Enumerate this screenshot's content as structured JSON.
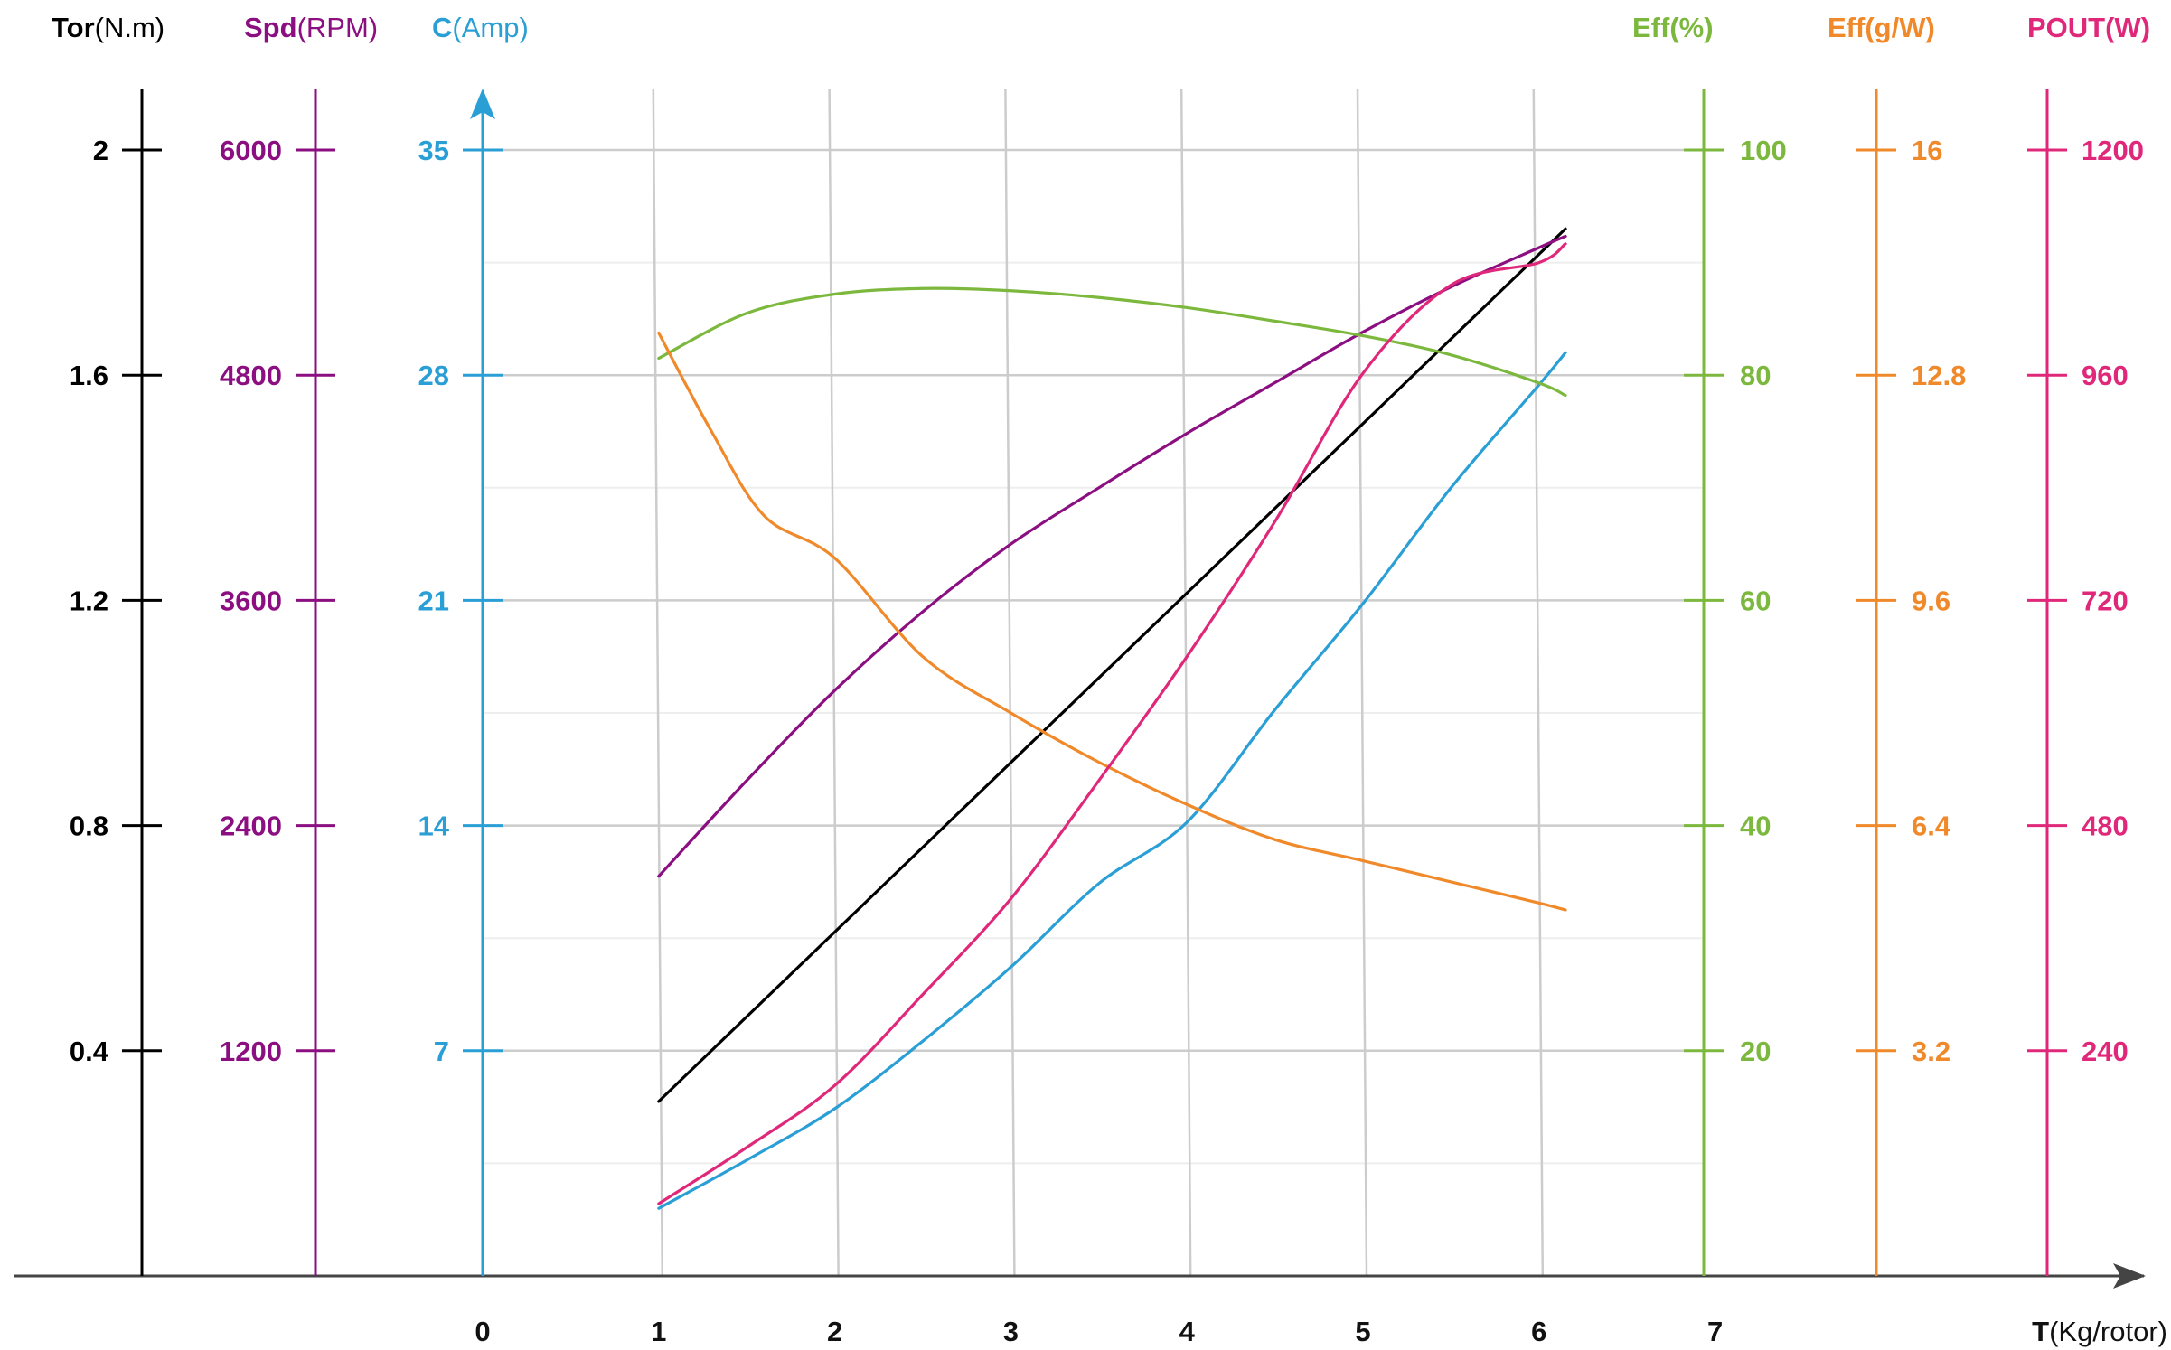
{
  "chart_data": {
    "type": "line",
    "x_axis": {
      "title_bold": "T",
      "title_rest": "(Kg/rotor)",
      "ticks": [
        0,
        1,
        2,
        3,
        4,
        5,
        6,
        7
      ],
      "range": [
        0,
        7
      ]
    },
    "y_axes": [
      {
        "id": "tor",
        "title_bold": "Tor",
        "title_rest": "(N.m)",
        "color": "#000000",
        "ticks": [
          "0.4",
          "0.8",
          "1.2",
          "1.6",
          "2"
        ],
        "range": [
          0,
          2
        ]
      },
      {
        "id": "spd",
        "title_bold": "Spd",
        "title_rest": "(RPM)",
        "color": "#8b0f80",
        "ticks": [
          "1200",
          "2400",
          "3600",
          "4800",
          "6000"
        ],
        "range": [
          0,
          6000
        ]
      },
      {
        "id": "c",
        "title_bold": "C",
        "title_rest": "(Amp)",
        "color": "#2a9fd6",
        "ticks": [
          "7",
          "14",
          "21",
          "28",
          "35"
        ],
        "range": [
          0,
          35
        ]
      },
      {
        "id": "eff",
        "title_bold": "Eff(%)",
        "title_rest": "",
        "color": "#7cb83d",
        "ticks": [
          "20",
          "40",
          "60",
          "80",
          "100"
        ],
        "range": [
          0,
          100
        ]
      },
      {
        "id": "effg",
        "title_bold": "Eff(g/W)",
        "title_rest": "",
        "color": "#f0892a",
        "ticks": [
          "3.2",
          "6.4",
          "9.6",
          "12.8",
          "16"
        ],
        "range": [
          0,
          16
        ]
      },
      {
        "id": "pout",
        "title_bold": "POUT(W)",
        "title_rest": "",
        "color": "#e0287a",
        "ticks": [
          "240",
          "480",
          "720",
          "960",
          "1200"
        ],
        "range": [
          0,
          1200
        ]
      }
    ],
    "grid": true,
    "series": [
      {
        "axis": "tor",
        "color": "#000000",
        "x": [
          1,
          6.15
        ],
        "y": [
          0.31,
          1.86
        ]
      },
      {
        "axis": "spd",
        "color": "#8b0f80",
        "x": [
          1,
          1.5,
          2,
          2.5,
          3,
          3.5,
          4,
          4.5,
          5,
          5.5,
          6,
          6.15
        ],
        "y": [
          2130,
          2640,
          3120,
          3540,
          3900,
          4200,
          4490,
          4760,
          5030,
          5270,
          5480,
          5540
        ]
      },
      {
        "axis": "c",
        "color": "#2a9fd6",
        "x": [
          1,
          1.5,
          2,
          2.5,
          3,
          3.5,
          4,
          4.5,
          5,
          5.5,
          6,
          6.15
        ],
        "y": [
          2.1,
          3.6,
          5.2,
          7.3,
          9.6,
          12.2,
          14.1,
          17.6,
          20.9,
          24.5,
          27.7,
          28.7
        ]
      },
      {
        "axis": "eff",
        "color": "#7cb83d",
        "x": [
          1,
          1.5,
          2,
          2.5,
          3,
          3.5,
          4,
          4.5,
          5,
          5.5,
          6,
          6.15
        ],
        "y": [
          81.5,
          85.5,
          87.2,
          87.7,
          87.5,
          86.9,
          86.0,
          84.8,
          83.5,
          81.8,
          79.3,
          78.2
        ]
      },
      {
        "axis": "effg",
        "color": "#f0892a",
        "x": [
          1,
          1.3,
          1.6,
          2,
          2.5,
          3,
          3.5,
          4,
          4.5,
          5,
          5.5,
          6,
          6.15
        ],
        "y": [
          13.4,
          12.0,
          10.8,
          10.2,
          8.8,
          8.0,
          7.3,
          6.7,
          6.2,
          5.9,
          5.6,
          5.3,
          5.2
        ]
      },
      {
        "axis": "pout",
        "color": "#e0287a",
        "x": [
          1,
          1.5,
          2,
          2.5,
          3,
          3.5,
          4,
          4.5,
          5,
          5.5,
          6,
          6.15
        ],
        "y": [
          77,
          137,
          203,
          300,
          402,
          528,
          660,
          804,
          962,
          1056,
          1080,
          1100
        ]
      }
    ]
  }
}
